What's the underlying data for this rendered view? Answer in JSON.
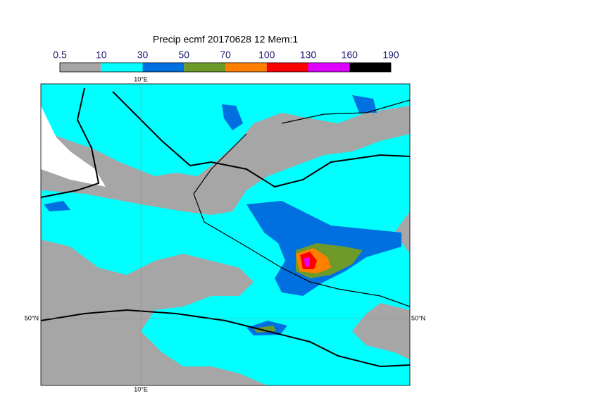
{
  "title": "Precip ecmf 20170628 12 Mem:1",
  "legend": {
    "levels": [
      "0.5",
      "10",
      "30",
      "50",
      "70",
      "100",
      "130",
      "160",
      "190"
    ],
    "colors": [
      "#a6a6a6",
      "#00ffff",
      "#0070e0",
      "#6e9a2a",
      "#ff8000",
      "#ff0000",
      "#e000ff",
      "#000000"
    ]
  },
  "map": {
    "lon_top": "10°E",
    "lon_bottom": "10°E",
    "lat_left": "50°N",
    "lat_right": "50°N"
  }
}
